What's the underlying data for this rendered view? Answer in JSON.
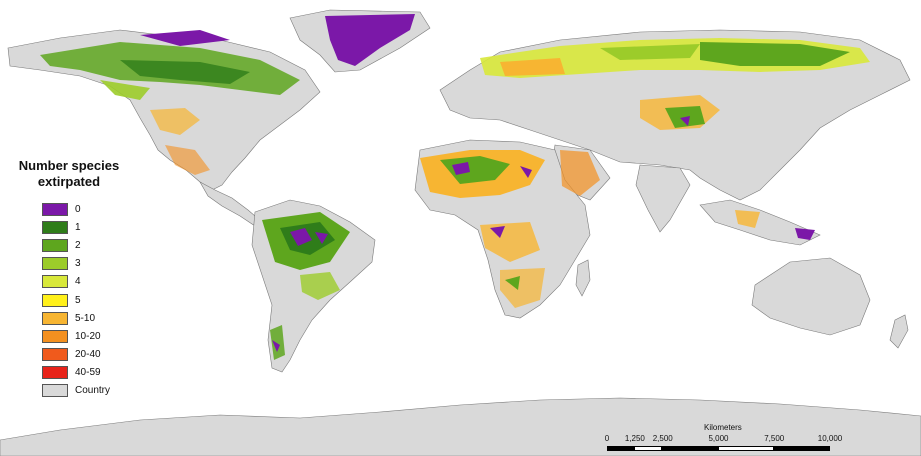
{
  "legend": {
    "title_line1": "Number species",
    "title_line2": "extirpated",
    "items": [
      {
        "label": "0",
        "color": "#7b18a8"
      },
      {
        "label": "1",
        "color": "#2f7d1a"
      },
      {
        "label": "2",
        "color": "#5ea61e"
      },
      {
        "label": "3",
        "color": "#9ccc2a"
      },
      {
        "label": "4",
        "color": "#d8e83a"
      },
      {
        "label": "5",
        "color": "#fff01a"
      },
      {
        "label": "5-10",
        "color": "#f7b532"
      },
      {
        "label": "10-20",
        "color": "#f39020"
      },
      {
        "label": "20-40",
        "color": "#f05a1c"
      },
      {
        "label": "40-59",
        "color": "#e8231a"
      },
      {
        "label": "Country",
        "color": "#d9d9d9"
      }
    ]
  },
  "scale": {
    "title": "Kilometers",
    "ticks": [
      "0",
      "1,250",
      "2,500",
      "5,000",
      "7,500",
      "10,000"
    ]
  }
}
